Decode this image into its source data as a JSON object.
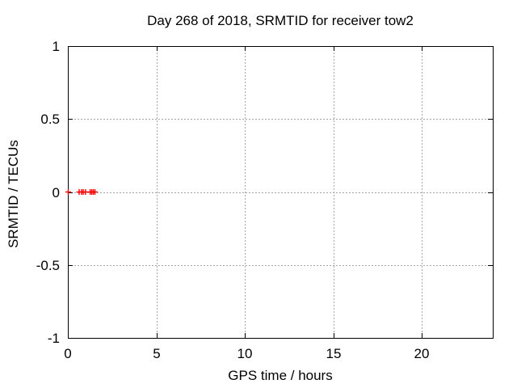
{
  "window": {
    "background": "#ffffff"
  },
  "chart_data": {
    "type": "scatter",
    "title": "Day 268 of 2018, SRMTID for receiver tow2",
    "xlabel": "GPS time / hours",
    "ylabel": "SRMTID / TECUs",
    "xlim": [
      0,
      24
    ],
    "ylim": [
      -1,
      1
    ],
    "xticks": [
      0,
      5,
      10,
      15,
      20
    ],
    "xtick_labels": [
      "0",
      "5",
      "10",
      "15",
      "20"
    ],
    "yticks": [
      -1,
      -0.5,
      0,
      0.5,
      1
    ],
    "ytick_labels": [
      "-1",
      "-0.5",
      "0",
      "0.5",
      "1"
    ],
    "grid": true,
    "legend": "none",
    "colors": {
      "marker": "#ff0000",
      "grid": "#a6a6a6",
      "axis": "#000000",
      "text": "#000000"
    },
    "series": [
      {
        "name": "SRMTID",
        "marker": "plus",
        "color": "#ff0000",
        "x": [
          0.02,
          0.64,
          0.78,
          0.87,
          1.0,
          1.26,
          1.35,
          1.44,
          1.53
        ],
        "y": [
          0,
          0,
          0,
          0,
          0,
          0,
          0,
          0,
          0
        ]
      }
    ]
  }
}
